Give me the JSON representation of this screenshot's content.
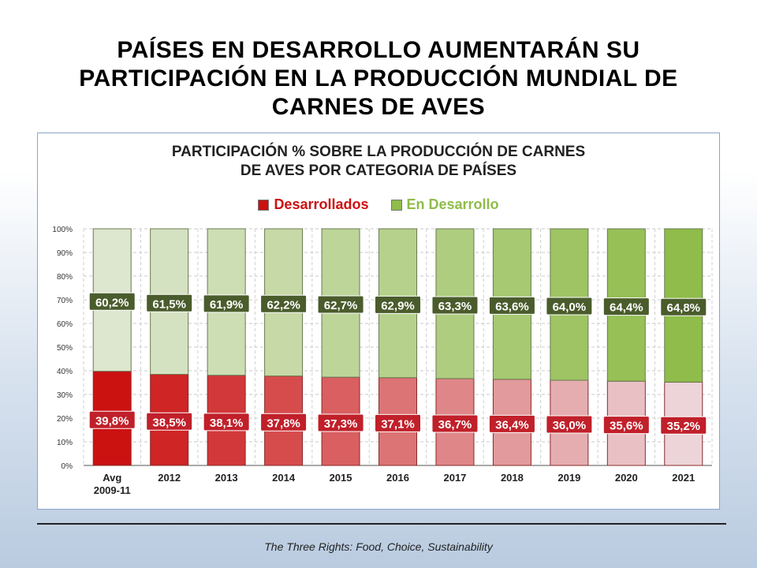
{
  "slide": {
    "title_lines": [
      "PAÍSES EN DESARROLLO AUMENTARÁN SU",
      "PARTICIPACIÓN EN LA PRODUCCIÓN MUNDIAL  DE",
      "CARNES DE AVES"
    ],
    "footer": "The Three Rights: Food, Choice, Sustainability"
  },
  "chart_data": {
    "type": "bar",
    "stacked": true,
    "title_lines": [
      "PARTICIPACIÓN % SOBRE LA PRODUCCIÓN DE CARNES",
      "DE AVES POR CATEGORIA DE PAÍSES"
    ],
    "categories": [
      [
        "Avg",
        "2009-11"
      ],
      [
        "2012"
      ],
      [
        "2013"
      ],
      [
        "2014"
      ],
      [
        "2015"
      ],
      [
        "2016"
      ],
      [
        "2017"
      ],
      [
        "2018"
      ],
      [
        "2019"
      ],
      [
        "2020"
      ],
      [
        "2021"
      ]
    ],
    "y_ticks": [
      "0%",
      "10%",
      "20%",
      "30%",
      "40%",
      "50%",
      "60%",
      "70%",
      "80%",
      "90%",
      "100%"
    ],
    "ylim": [
      0,
      100
    ],
    "grid": true,
    "legend_position": "top",
    "series": [
      {
        "name": "Desarrollados",
        "color": "#cc1111",
        "label_color": "#c0202a",
        "values": [
          39.8,
          38.5,
          38.1,
          37.8,
          37.3,
          37.1,
          36.7,
          36.4,
          36.0,
          35.6,
          35.2
        ],
        "labels": [
          "39,8%",
          "38,5%",
          "38,1%",
          "37,8%",
          "37,3%",
          "37,1%",
          "36,7%",
          "36,4%",
          "36,0%",
          "35,6%",
          "35,2%"
        ]
      },
      {
        "name": "En Desarrollo",
        "color": "#8fbc4a",
        "label_color": "#4a5c2c",
        "values": [
          60.2,
          61.5,
          61.9,
          62.2,
          62.7,
          62.9,
          63.3,
          63.6,
          64.0,
          64.4,
          64.8
        ],
        "labels": [
          "60,2%",
          "61,5%",
          "61,9%",
          "62,2%",
          "62,7%",
          "62,9%",
          "63,3%",
          "63,6%",
          "64,0%",
          "64,4%",
          "64,8%"
        ]
      }
    ]
  }
}
